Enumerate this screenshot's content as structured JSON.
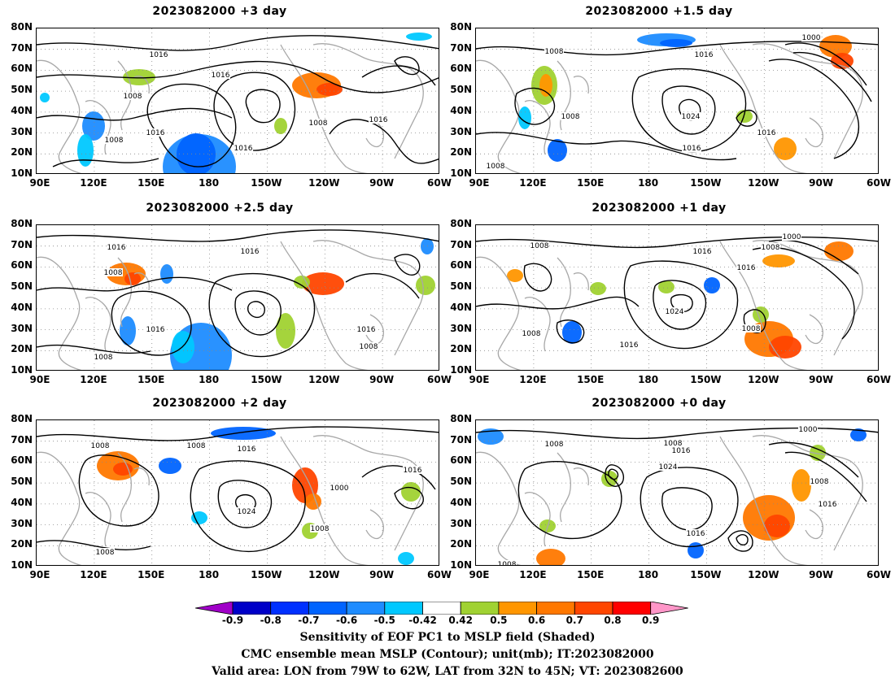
{
  "panels": [
    {
      "title": "2023082000  +3 day"
    },
    {
      "title": "2023082000  +1.5 day"
    },
    {
      "title": "2023082000  +2.5 day"
    },
    {
      "title": "2023082000  +1 day"
    },
    {
      "title": "2023082000  +2 day"
    },
    {
      "title": "2023082000  +0 day"
    }
  ],
  "axes": {
    "lat_labels": [
      "80N",
      "70N",
      "60N",
      "50N",
      "40N",
      "30N",
      "20N",
      "10N"
    ],
    "lon_labels": [
      "90E",
      "120E",
      "150E",
      "180",
      "150W",
      "120W",
      "90W",
      "60W"
    ]
  },
  "contour_labels": {
    "p0": [
      "1016",
      "1016",
      "1008",
      "1008",
      "1016",
      "1016",
      "1008",
      "1016"
    ],
    "p1": [
      "1008",
      "1000",
      "1016",
      "1024",
      "1008",
      "1016",
      "1016",
      "1008"
    ],
    "p2": [
      "1016",
      "1008",
      "1016",
      "1016",
      "1008",
      "1016",
      "1008"
    ],
    "p3": [
      "1008",
      "1000",
      "1016",
      "1008",
      "1016",
      "1024",
      "1008",
      "1008",
      "1016"
    ],
    "p4": [
      "1008",
      "1008",
      "1016",
      "1024",
      "1016",
      "1000",
      "1008",
      "1008"
    ],
    "p5": [
      "1008",
      "1008",
      "1016",
      "1024",
      "1000",
      "1008",
      "1016",
      "1016",
      "1008"
    ]
  },
  "colorbar": {
    "labels": [
      "-0.9",
      "-0.8",
      "-0.7",
      "-0.6",
      "-0.5",
      "-0.42",
      "0.42",
      "0.5",
      "0.6",
      "0.7",
      "0.8",
      "0.9"
    ],
    "colors": [
      "#a000c8",
      "#0000c8",
      "#0030ff",
      "#0064ff",
      "#1e8cff",
      "#00c8ff",
      "#ffffff",
      "#a0d232",
      "#ff9600",
      "#ff7800",
      "#ff4600",
      "#ff0000",
      "#ff96c8"
    ]
  },
  "captions": {
    "line1": "Sensitivity of EOF PC1 to MSLP field (Shaded)",
    "line2": "CMC ensemble mean MSLP (Contour); unit(mb); IT:2023082000",
    "line3": "Valid area: LON from 79W to 62W, LAT from 32N to 45N; VT: 2023082600"
  }
}
